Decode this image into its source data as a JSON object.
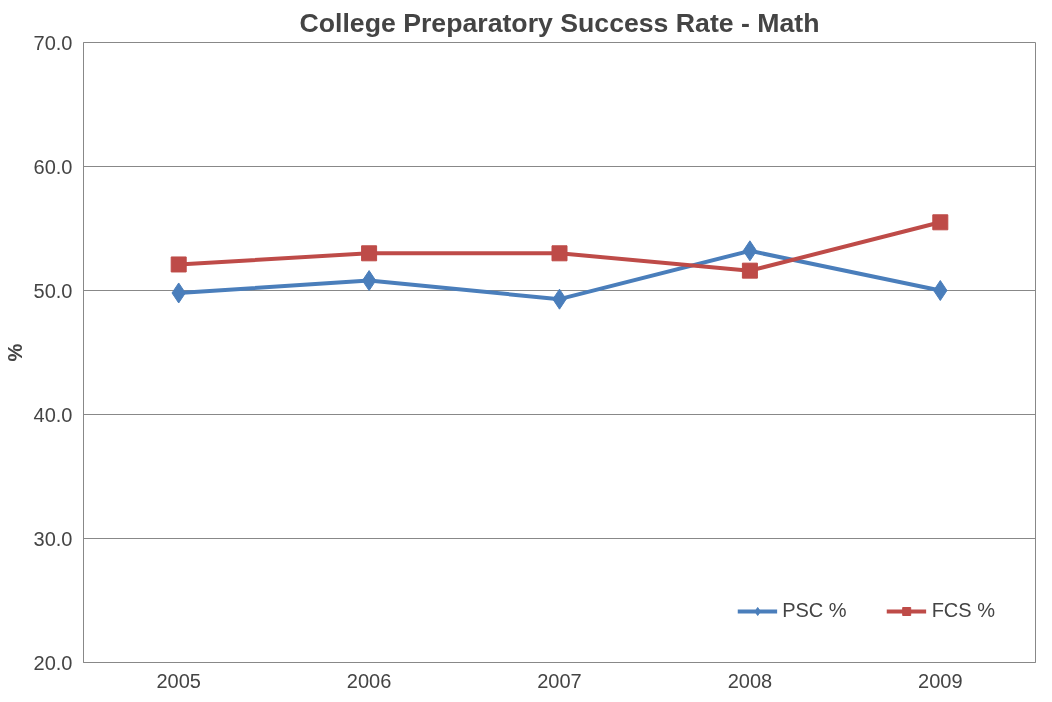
{
  "chart_data": {
    "type": "line",
    "title": "College Preparatory Success Rate - Math",
    "ylabel": "%",
    "categories": [
      "2005",
      "2006",
      "2007",
      "2008",
      "2009"
    ],
    "series": [
      {
        "name": "PSC %",
        "color": "#4a7ebb",
        "values": [
          49.8,
          50.8,
          49.3,
          53.2,
          50.0
        ],
        "marker": "diamond"
      },
      {
        "name": "FCS %",
        "color": "#be4b48",
        "values": [
          52.1,
          53.0,
          53.0,
          51.6,
          55.5
        ],
        "marker": "square"
      }
    ],
    "ylim": [
      20,
      70
    ],
    "yticks": [
      {
        "value": 20,
        "label": "20.0"
      },
      {
        "value": 30,
        "label": "30.0"
      },
      {
        "value": 40,
        "label": "40.0"
      },
      {
        "value": 50,
        "label": "50.0"
      },
      {
        "value": 60,
        "label": "60.0"
      },
      {
        "value": 70,
        "label": "70.0"
      }
    ],
    "grid": "y",
    "legend": "bottom right",
    "line_style": "solid"
  }
}
